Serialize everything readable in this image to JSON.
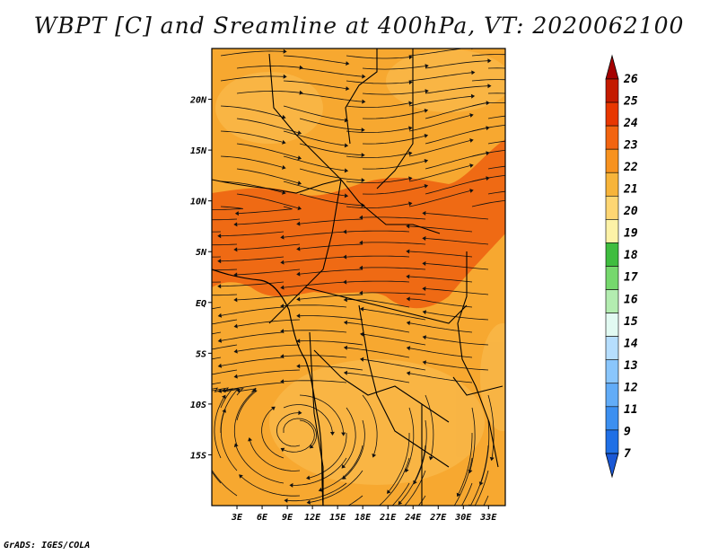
{
  "title": "WBPT [C] and Sreamline at 400hPa, VT: 2020062100",
  "credit": "GrADS: IGES/COLA",
  "map": {
    "lon_range": [
      0,
      35
    ],
    "lat_range": [
      -20,
      25
    ],
    "lon_ticks": [
      "3E",
      "6E",
      "9E",
      "12E",
      "15E",
      "18E",
      "21E",
      "24E",
      "27E",
      "30E",
      "33E"
    ],
    "lon_values": [
      3,
      6,
      9,
      12,
      15,
      18,
      21,
      24,
      27,
      30,
      33
    ],
    "lat_ticks": [
      "20N",
      "15N",
      "10N",
      "5N",
      "EQ",
      "5S",
      "10S",
      "15S"
    ],
    "lat_values": [
      20,
      15,
      10,
      5,
      0,
      -5,
      -10,
      -15
    ],
    "base_color": "#f7a830",
    "warm_band_color": "#ef6a14",
    "streamline_color": "#111111"
  },
  "colorbar": {
    "labels": [
      "26",
      "25",
      "24",
      "23",
      "22",
      "21",
      "20",
      "19",
      "18",
      "17",
      "16",
      "15",
      "14",
      "13",
      "12",
      "11",
      "9",
      "7"
    ],
    "colors": [
      "#a50000",
      "#c41b00",
      "#e83700",
      "#f26410",
      "#f7921f",
      "#f7b43a",
      "#fed673",
      "#fdf2a7",
      "#3fbd3f",
      "#76d86d",
      "#b3ecb0",
      "#e2faf2",
      "#b6defe",
      "#8ac6fc",
      "#62acf7",
      "#3c8ff0",
      "#2070e6",
      "#1a58d6"
    ]
  }
}
